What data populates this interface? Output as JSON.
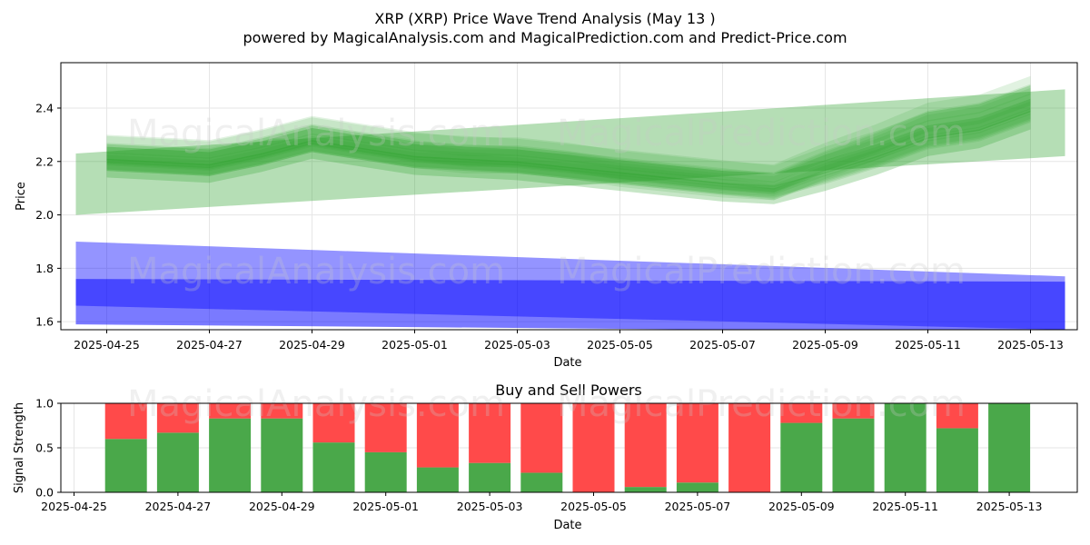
{
  "header": {
    "title": "XRP (XRP) Price Wave Trend Analysis (May 13 )",
    "subtitle": "powered by MagicalAnalysis.com and MagicalPrediction.com and Predict-Price.com"
  },
  "watermarks": [
    "MagicalAnalysis.com",
    "MagicalPrediction.com"
  ],
  "colors": {
    "green_band": "#2ca02c",
    "blue_band": "#0000ff",
    "buy": "#4aa84a",
    "sell": "#ff4a4a",
    "grid": "#e6e6e6"
  },
  "chart_data": [
    {
      "type": "area",
      "title": "",
      "xlabel": "Date",
      "ylabel": "Price",
      "ylim": [
        1.57,
        2.57
      ],
      "xlim": [
        "2025-04-24",
        "2025-05-14"
      ],
      "x_ticks": [
        "2025-04-25",
        "2025-04-27",
        "2025-04-29",
        "2025-05-01",
        "2025-05-03",
        "2025-05-05",
        "2025-05-07",
        "2025-05-09",
        "2025-05-11",
        "2025-05-13"
      ],
      "y_ticks": [
        "1.6",
        "1.8",
        "2.0",
        "2.2",
        "2.4"
      ],
      "grid": true,
      "x": [
        "2025-04-25",
        "2025-04-26",
        "2025-04-27",
        "2025-04-28",
        "2025-04-29",
        "2025-04-30",
        "2025-05-01",
        "2025-05-02",
        "2025-05-03",
        "2025-05-04",
        "2025-05-05",
        "2025-05-06",
        "2025-05-07",
        "2025-05-08",
        "2025-05-09",
        "2025-05-10",
        "2025-05-11",
        "2025-05-12",
        "2025-05-13"
      ],
      "series": [
        {
          "color": "green",
          "values": [
            2.21,
            2.2,
            2.19,
            2.23,
            2.28,
            2.25,
            2.22,
            2.21,
            2.2,
            2.18,
            2.16,
            2.14,
            2.12,
            2.1,
            2.17,
            2.23,
            2.3,
            2.33,
            2.4
          ]
        },
        {
          "color": "green",
          "values": [
            2.23,
            2.22,
            2.21,
            2.25,
            2.3,
            2.27,
            2.24,
            2.22,
            2.22,
            2.2,
            2.17,
            2.15,
            2.13,
            2.12,
            2.2,
            2.27,
            2.35,
            2.38,
            2.45
          ]
        },
        {
          "color": "green",
          "values": [
            2.19,
            2.18,
            2.17,
            2.21,
            2.26,
            2.23,
            2.2,
            2.19,
            2.18,
            2.16,
            2.14,
            2.12,
            2.1,
            2.09,
            2.14,
            2.2,
            2.27,
            2.3,
            2.37
          ]
        }
      ],
      "bands": [
        {
          "color": "green",
          "start": [
            2.0,
            2.23
          ],
          "end": [
            2.22,
            2.47
          ]
        },
        {
          "color": "blue",
          "start": [
            1.66,
            1.9
          ],
          "end": [
            1.57,
            1.77
          ]
        },
        {
          "color": "blue",
          "start": [
            1.59,
            1.76
          ],
          "end": [
            1.56,
            1.75
          ]
        }
      ]
    },
    {
      "type": "bar",
      "title": "Buy and Sell Powers",
      "xlabel": "Date",
      "ylabel": "Signal Strength",
      "ylim": [
        0.0,
        1.0
      ],
      "y_ticks": [
        "0.0",
        "0.5",
        "1.0"
      ],
      "x_ticks": [
        "2025-04-25",
        "2025-04-27",
        "2025-04-29",
        "2025-05-01",
        "2025-05-03",
        "2025-05-05",
        "2025-05-07",
        "2025-05-09",
        "2025-05-11",
        "2025-05-13"
      ],
      "categories": [
        "2025-04-26",
        "2025-04-27",
        "2025-04-28",
        "2025-04-29",
        "2025-04-30",
        "2025-05-01",
        "2025-05-02",
        "2025-05-03",
        "2025-05-04",
        "2025-05-05",
        "2025-05-06",
        "2025-05-07",
        "2025-05-08",
        "2025-05-09",
        "2025-05-10",
        "2025-05-11",
        "2025-05-12",
        "2025-05-13"
      ],
      "series": [
        {
          "color": "green",
          "values": [
            0.6,
            0.67,
            0.83,
            0.83,
            0.56,
            0.45,
            0.28,
            0.33,
            0.22,
            0.0,
            0.06,
            0.11,
            0.0,
            0.78,
            0.83,
            1.0,
            0.72,
            1.0
          ]
        },
        {
          "color": "red",
          "values": [
            0.4,
            0.33,
            0.17,
            0.17,
            0.44,
            0.55,
            0.72,
            0.67,
            0.78,
            1.0,
            0.94,
            0.89,
            1.0,
            0.22,
            0.17,
            0.0,
            0.28,
            0.0
          ]
        }
      ]
    }
  ]
}
